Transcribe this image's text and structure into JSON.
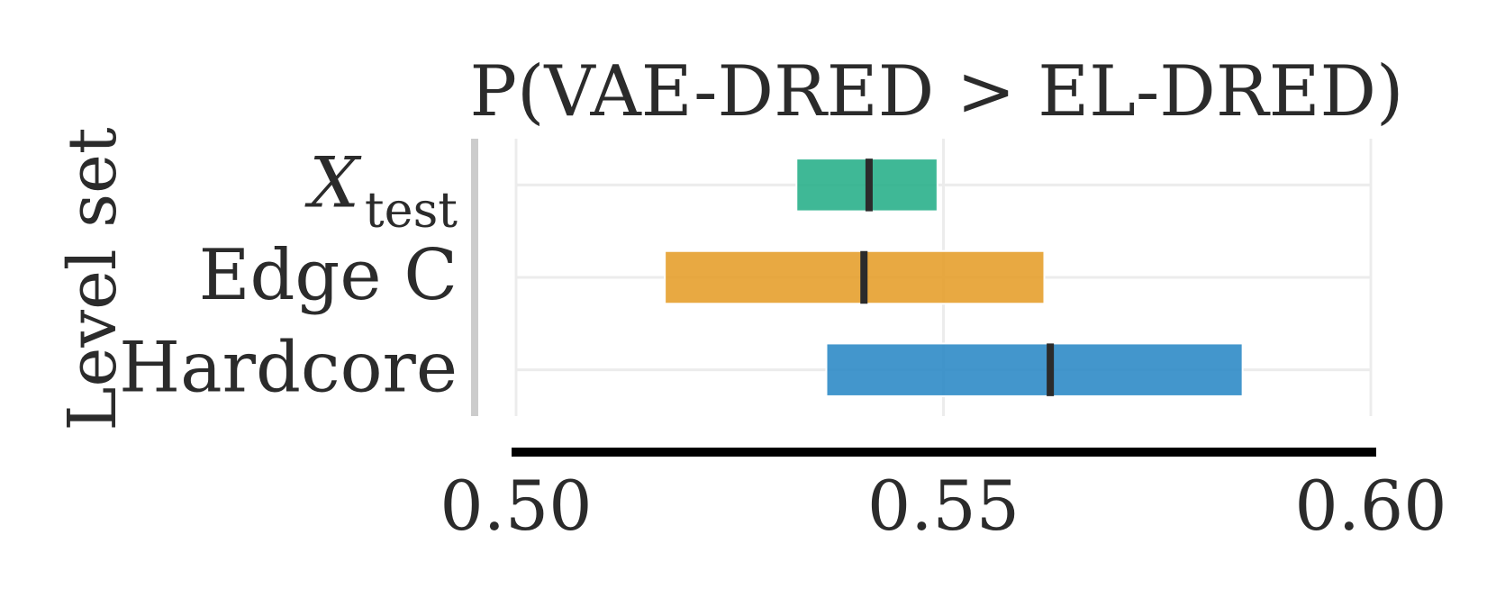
{
  "chart_data": {
    "type": "interval",
    "title": "P(VAE-DRED > EL-DRED)",
    "ylabel": "Level set",
    "xlabel": "",
    "xlim": [
      0.5,
      0.6
    ],
    "xticks": [
      "0.50",
      "0.55",
      "0.60"
    ],
    "xtick_values": [
      0.5,
      0.55,
      0.6
    ],
    "grid": true,
    "categories": [
      {
        "label": "X",
        "subscript": "test",
        "low": 0.5328,
        "high": 0.5493,
        "point": 0.5413,
        "color": "#2ab08b"
      },
      {
        "label": "Edge C",
        "subscript": "",
        "low": 0.5174,
        "high": 0.5618,
        "point": 0.5407,
        "color": "#e6a02e"
      },
      {
        "label": "Hardcore",
        "subscript": "",
        "low": 0.5363,
        "high": 0.585,
        "point": 0.5625,
        "color": "#2f8bc6"
      }
    ]
  }
}
